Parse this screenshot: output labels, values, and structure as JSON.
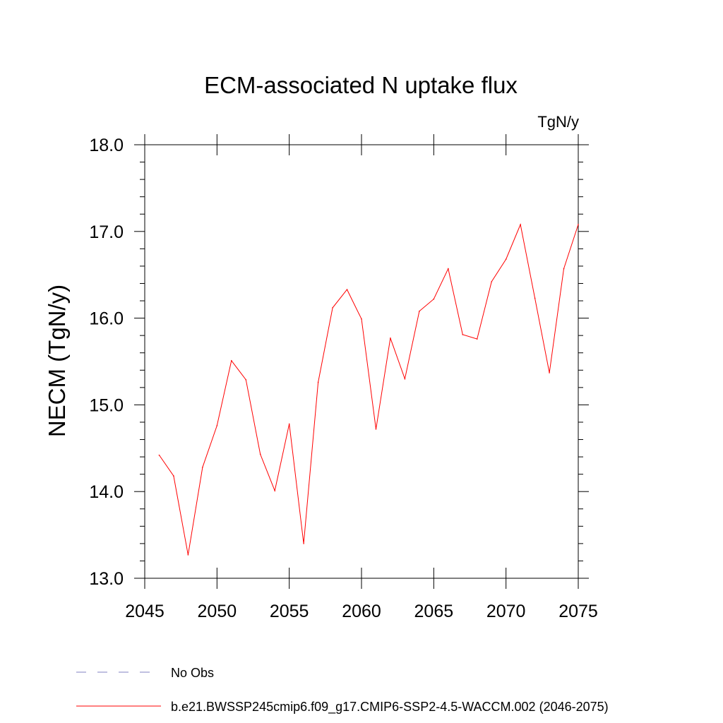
{
  "chart_data": {
    "type": "line",
    "title": "ECM-associated N uptake flux",
    "units_label": "TgN/y",
    "ylabel": "NECM  (TgN/y)",
    "xlabel": "",
    "xlim": [
      2045,
      2075
    ],
    "ylim": [
      13.0,
      18.0
    ],
    "x_ticks": [
      2045,
      2050,
      2055,
      2060,
      2065,
      2070,
      2075
    ],
    "x_tick_labels": [
      "2045",
      "2050",
      "2055",
      "2060",
      "2065",
      "2070",
      "2075"
    ],
    "y_ticks": [
      13.0,
      14.0,
      15.0,
      16.0,
      17.0,
      18.0
    ],
    "y_tick_labels": [
      "13.0",
      "14.0",
      "15.0",
      "16.0",
      "17.0",
      "18.0"
    ],
    "grid": false,
    "legend_placement": "bottom",
    "series": [
      {
        "name": "b.e21.BWSSP245cmip6.f09_g17.CMIP6-SSP2-4.5-WACCM.002 (2046-2075)",
        "color": "#ff0000",
        "style": "solid",
        "x": [
          2046,
          2047,
          2048,
          2049,
          2050,
          2051,
          2052,
          2053,
          2054,
          2055,
          2056,
          2057,
          2058,
          2059,
          2060,
          2061,
          2062,
          2063,
          2064,
          2065,
          2066,
          2067,
          2068,
          2069,
          2070,
          2071,
          2072,
          2073,
          2074,
          2075
        ],
        "y": [
          14.42,
          14.18,
          13.27,
          14.28,
          14.76,
          15.51,
          15.29,
          14.43,
          14.01,
          14.78,
          13.4,
          15.26,
          16.12,
          16.33,
          15.99,
          14.72,
          15.77,
          15.3,
          16.08,
          16.22,
          16.57,
          15.81,
          15.76,
          16.42,
          16.68,
          17.08,
          16.23,
          15.37,
          16.57,
          17.08
        ]
      }
    ],
    "legend_entries": [
      {
        "label": "No Obs",
        "color": "#8080c0",
        "style": "dashed"
      },
      {
        "label": "b.e21.BWSSP245cmip6.f09_g17.CMIP6-SSP2-4.5-WACCM.002 (2046-2075)",
        "color": "#ff0000",
        "style": "solid"
      }
    ]
  }
}
